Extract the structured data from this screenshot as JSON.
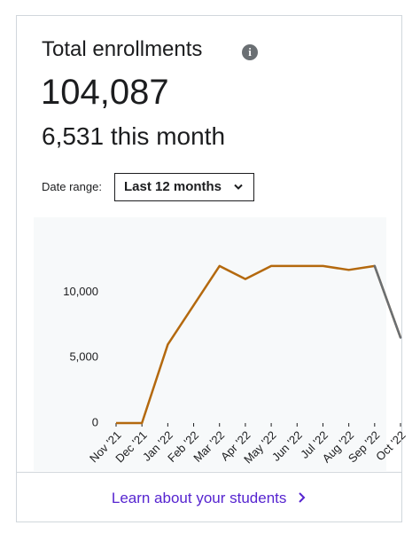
{
  "header": {
    "title": "Total enrollments",
    "total": "104,087",
    "this_month": "6,531 this month"
  },
  "filter": {
    "label": "Date range:",
    "selected": "Last 12 months"
  },
  "chart_data": {
    "type": "line",
    "categories": [
      "Nov '21",
      "Dec '21",
      "Jan '22",
      "Feb '22",
      "Mar '22",
      "Apr '22",
      "May '22",
      "Jun '22",
      "Jul '22",
      "Aug '22",
      "Sep '22",
      "Oct '22"
    ],
    "values": [
      0,
      0,
      6000,
      9000,
      12000,
      11000,
      12000,
      12000,
      12000,
      11700,
      12000,
      6531
    ],
    "color": "#b4690e",
    "last_segment_color": "#6a6f73",
    "ylim": [
      0,
      14500
    ],
    "yticks": [
      0,
      {
        "value": 5000,
        "label": "5,000"
      },
      {
        "value": 10000,
        "label": "10,000"
      }
    ],
    "grid": false
  },
  "footer": {
    "link": "Learn about your students"
  }
}
